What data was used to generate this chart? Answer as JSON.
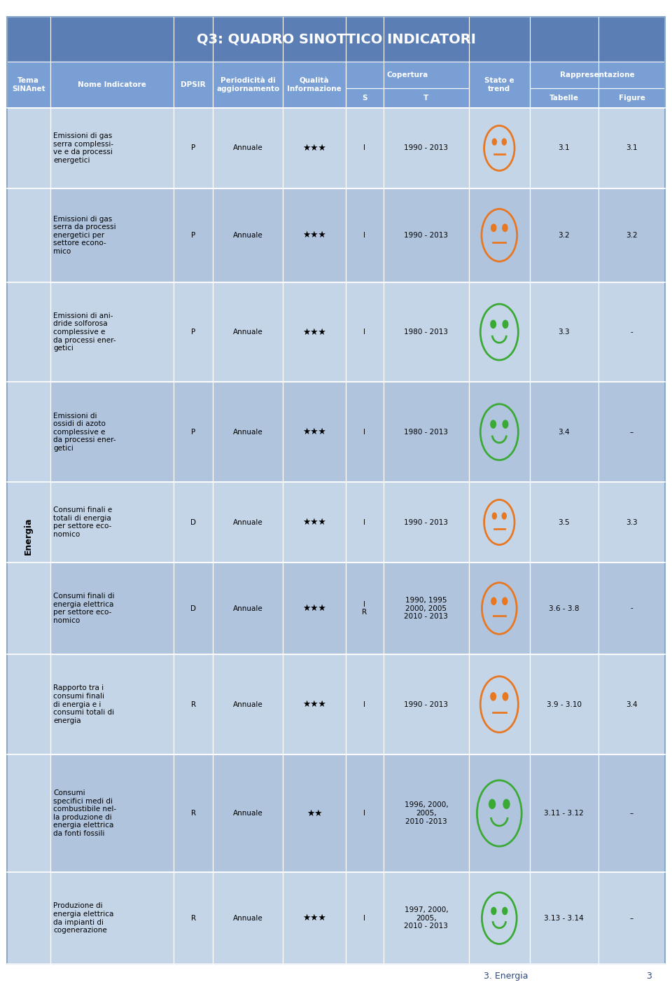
{
  "title": "Q3: QUADRO SINOTTICO INDICATORI",
  "title_bg": "#5b7eb5",
  "header_bg": "#7a9fd4",
  "row_bg_light": "#c5d5e8",
  "row_bg_dark": "#b0c4de",
  "rows": [
    {
      "nome": "Emissioni di gas\nserra complessi-\nve e da processi\nenergetici",
      "dpsir": "P",
      "period": "Annuale",
      "qualita": "★★★",
      "s": "I",
      "t": "1990 - 2013",
      "stato": "neutral_orange",
      "tabelle": "3.1",
      "figure": "3.1"
    },
    {
      "nome": "Emissioni di gas\nserra da processi\nenergetici per\nsettore econo-\nmico",
      "dpsir": "P",
      "period": "Annuale",
      "qualita": "★★★",
      "s": "I",
      "t": "1990 - 2013",
      "stato": "neutral_orange",
      "tabelle": "3.2",
      "figure": "3.2"
    },
    {
      "nome": "Emissioni di ani-\ndride solforosa\ncomplessive e\nda processi ener-\ngetici",
      "dpsir": "P",
      "period": "Annuale",
      "qualita": "★★★",
      "s": "I",
      "t": "1980 - 2013",
      "stato": "smile_green",
      "tabelle": "3.3",
      "figure": "-"
    },
    {
      "nome": "Emissioni di\nossidi di azoto\ncomplessive e\nda processi ener-\ngetici",
      "dpsir": "P",
      "period": "Annuale",
      "qualita": "★★★",
      "s": "I",
      "t": "1980 - 2013",
      "stato": "smile_green",
      "tabelle": "3.4",
      "figure": "–"
    },
    {
      "nome": "Consumi finali e\ntotali di energia\nper settore eco-\nnomico",
      "dpsir": "D",
      "period": "Annuale",
      "qualita": "★★★",
      "s": "I",
      "t": "1990 - 2013",
      "stato": "neutral_orange",
      "tabelle": "3.5",
      "figure": "3.3"
    },
    {
      "nome": "Consumi finali di\nenergia elettrica\nper settore eco-\nnomico",
      "dpsir": "D",
      "period": "Annuale",
      "qualita": "★★★",
      "s": "I\nR",
      "t": "1990, 1995\n2000, 2005\n2010 - 2013",
      "stato": "neutral_orange",
      "tabelle": "3.6 - 3.8",
      "figure": "-"
    },
    {
      "nome": "Rapporto tra i\nconsumi finali\ndi energia e i\nconsumi totali di\nenergia",
      "dpsir": "R",
      "period": "Annuale",
      "qualita": "★★★",
      "s": "I",
      "t": "1990 - 2013",
      "stato": "neutral_orange",
      "tabelle": "3.9 - 3.10",
      "figure": "3.4"
    },
    {
      "nome": "Consumi\nspecifici medi di\ncombustibile nel-\nla produzione di\nenergia elettrica\nda fonti fossili",
      "dpsir": "R",
      "period": "Annuale",
      "qualita": "★★",
      "s": "I",
      "t": "1996, 2000,\n2005,\n2010 -2013",
      "stato": "smile_green",
      "tabelle": "3.11 - 3.12",
      "figure": "–"
    },
    {
      "nome": "Produzione di\nenergia elettrica\nda impianti di\ncogenerazione",
      "dpsir": "R",
      "period": "Annuale",
      "qualita": "★★★",
      "s": "I",
      "t": "1997, 2000,\n2005,\n2010 - 2013",
      "stato": "smile_green",
      "tabelle": "3.13 - 3.14",
      "figure": "–"
    }
  ]
}
